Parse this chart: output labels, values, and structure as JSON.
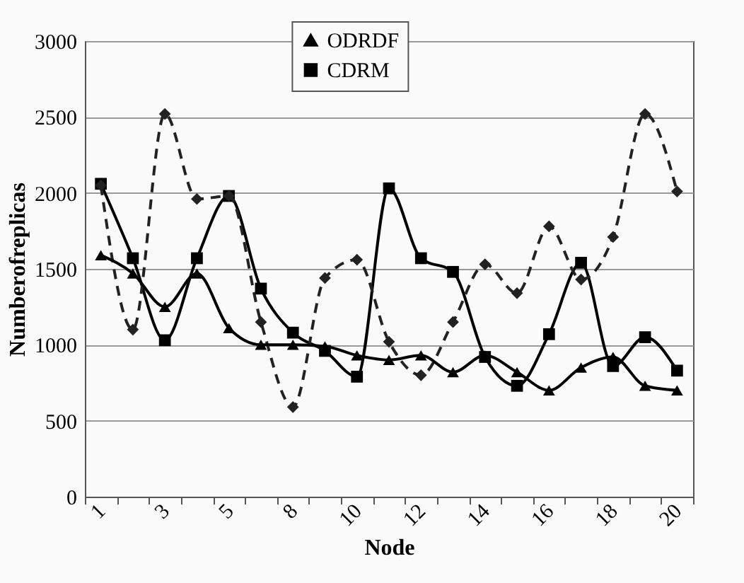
{
  "chart_data": {
    "type": "line",
    "xlabel": "Node",
    "ylabel": "Numberofreplicas",
    "categories": [
      "1",
      null,
      "3",
      null,
      "5",
      null,
      "8",
      null,
      "10",
      null,
      "12",
      null,
      "14",
      null,
      "16",
      null,
      "18",
      null,
      "20"
    ],
    "series": [
      {
        "name": "ODRDF",
        "color": "#000000",
        "marker": "triangle",
        "line_style": "solid",
        "values": [
          1590,
          1470,
          1250,
          1470,
          1110,
          1000,
          1000,
          990,
          930,
          900,
          930,
          820,
          930,
          820,
          700,
          850,
          920,
          730,
          700
        ]
      },
      {
        "color": "#222222",
        "marker": "diamond",
        "line_style": "dashed",
        "values": [
          2050,
          1100,
          2520,
          1960,
          1980,
          1150,
          590,
          1440,
          1560,
          1020,
          800,
          1150,
          1530,
          1340,
          1780,
          1430,
          1710,
          2520,
          2010
        ]
      },
      {
        "name": "CDRM",
        "color": "#000000",
        "marker": "square",
        "line_style": "solid",
        "values": [
          2060,
          1570,
          1030,
          1570,
          1980,
          1370,
          1080,
          960,
          790,
          2030,
          1570,
          1480,
          920,
          730,
          1070,
          1540,
          860,
          1050,
          830
        ]
      }
    ],
    "ylim": [
      0,
      3000
    ],
    "yticks": [
      0,
      500,
      1000,
      1500,
      2000,
      2500,
      3000
    ],
    "grid": "y",
    "legend": "top"
  }
}
